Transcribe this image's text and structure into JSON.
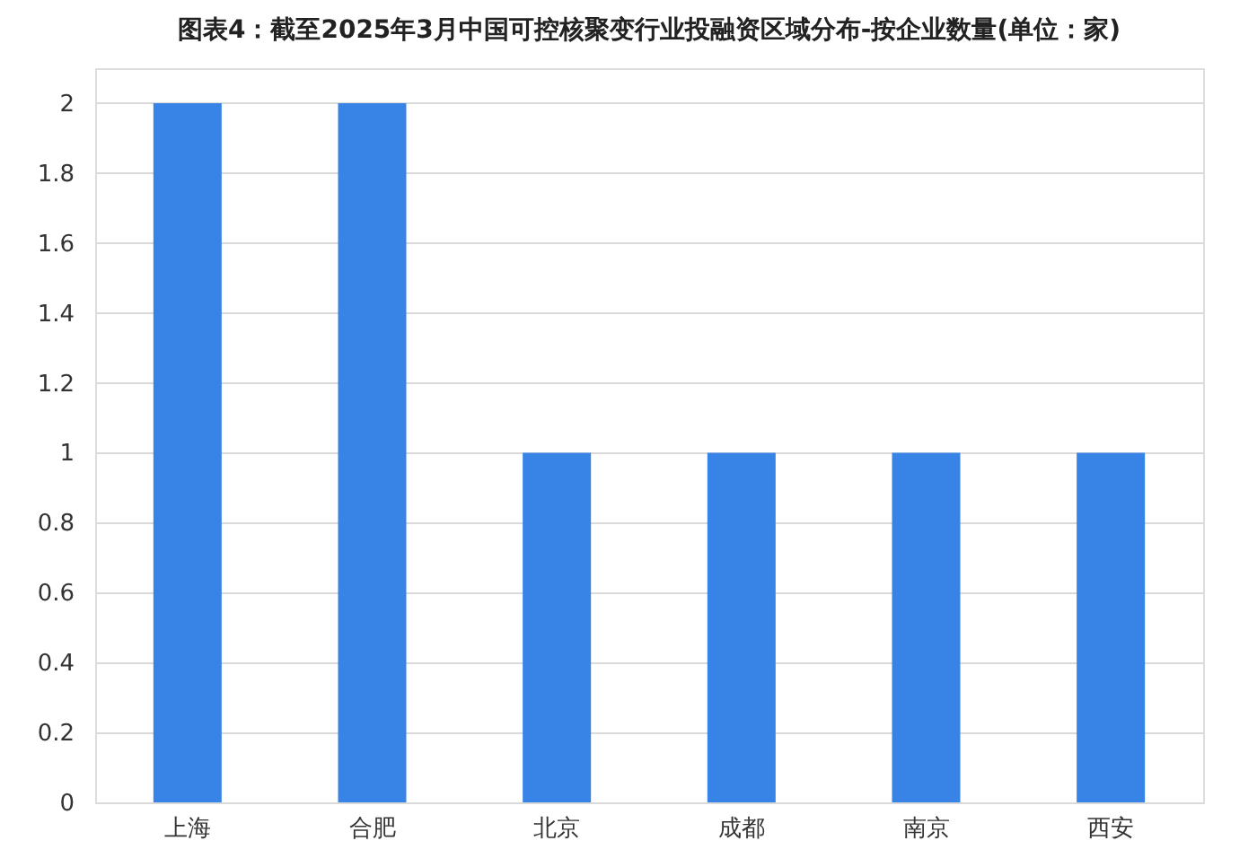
{
  "chart_data": {
    "type": "bar",
    "title": "图表4：截至2025年3月中国可控核聚变行业投融资区域分布-按企业数量(单位：家)",
    "categories": [
      "上海",
      "合肥",
      "北京",
      "成都",
      "南京",
      "西安"
    ],
    "values": [
      2,
      2,
      1,
      1,
      1,
      1
    ],
    "color": "#3784e6",
    "ylim": [
      0,
      2.1
    ],
    "yticks": [
      0,
      0.2,
      0.4,
      0.6,
      0.8,
      1,
      1.2,
      1.4,
      1.6,
      1.8,
      2
    ],
    "grid": "y"
  }
}
